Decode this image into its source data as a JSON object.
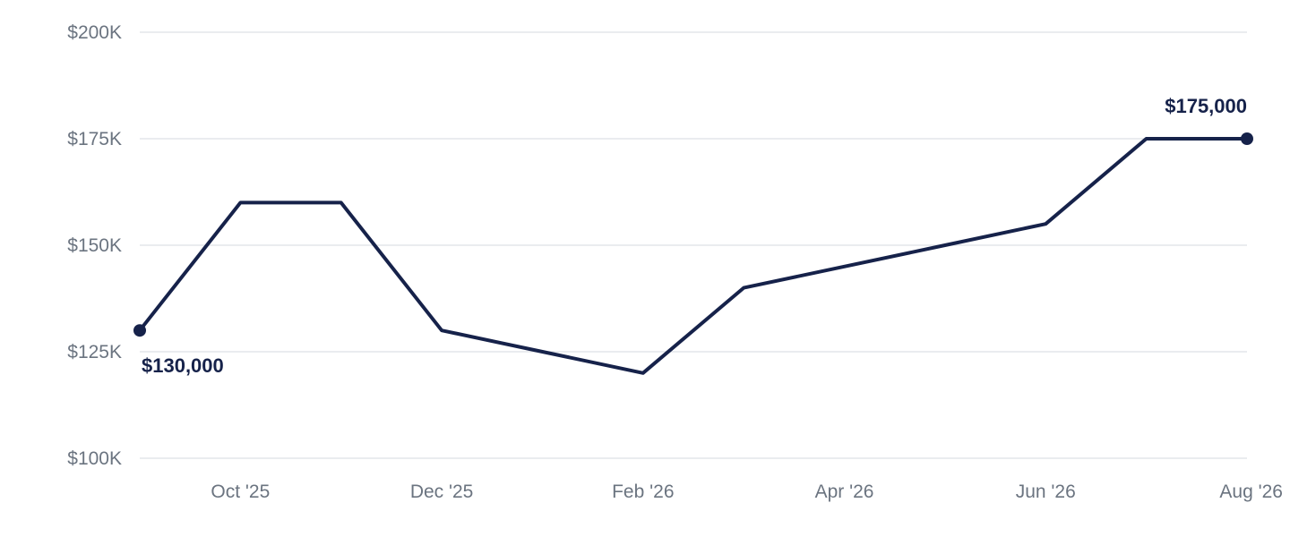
{
  "chart_data": {
    "type": "line",
    "title": "",
    "xlabel": "",
    "ylabel": "",
    "x": [
      "2025-09",
      "2025-10",
      "2025-11",
      "2025-12",
      "2026-01",
      "2026-02",
      "2026-03",
      "2026-04",
      "2026-05",
      "2026-06",
      "2026-07",
      "2026-08"
    ],
    "values": [
      130000,
      160000,
      160000,
      130000,
      125000,
      120000,
      140000,
      145000,
      150000,
      155000,
      175000,
      175000
    ],
    "ylim": [
      100000,
      200000
    ],
    "y_ticks": [
      100000,
      125000,
      150000,
      175000,
      200000
    ],
    "y_tick_labels": [
      "$100K",
      "$125K",
      "$150K",
      "$175K",
      "$200K"
    ],
    "x_ticks": [
      "2025-10",
      "2025-12",
      "2026-02",
      "2026-04",
      "2026-06",
      "2026-08"
    ],
    "x_tick_labels": [
      "Oct '25",
      "Dec '25",
      "Feb '26",
      "Apr '26",
      "Jun '26",
      "Aug '26"
    ],
    "grid": true,
    "legend": "none",
    "line_color": "#16224a",
    "annotations": [
      {
        "x": "2025-09",
        "value": 130000,
        "label": "$130,000"
      },
      {
        "x": "2026-08",
        "value": 175000,
        "label": "$175,000"
      }
    ]
  }
}
